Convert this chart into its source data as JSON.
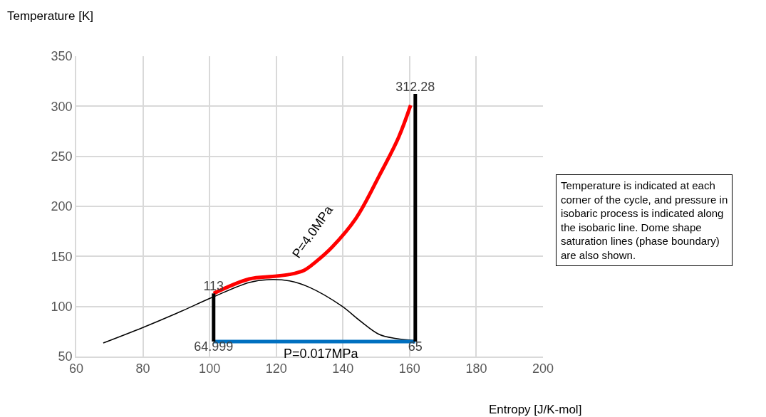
{
  "chart_data": {
    "type": "line",
    "xlabel": "Entropy [J/K-mol]",
    "ylabel": "Temperature [K]",
    "xlim": [
      60,
      200
    ],
    "xticks": [
      60,
      80,
      100,
      120,
      140,
      160,
      180,
      200
    ],
    "ylim": [
      50,
      350
    ],
    "yticks": [
      50,
      100,
      150,
      200,
      250,
      300,
      350
    ],
    "grid": true,
    "marker": "none",
    "line_style": "solid",
    "series": [
      {
        "color": "#000000",
        "x": [
          68.1,
          80,
          90,
          101.2,
          111.9,
          117.6,
          124,
          130,
          139.6,
          145,
          150.9,
          156,
          161.6
        ],
        "values": [
          63.5,
          79,
          93,
          109.7,
          124,
          126.8,
          125.5,
          119,
          100.5,
          86,
          72,
          68,
          66
        ]
      },
      {
        "color": "#ff0000",
        "x": [
          101.2,
          111.9,
          118.9,
          124,
          128.3,
          132,
          136.8,
          143.9,
          150.9,
          156.7,
          160.3
        ],
        "values": [
          113,
          127.5,
          130,
          132,
          136,
          145,
          159.5,
          188,
          230.7,
          269,
          301
        ]
      },
      {
        "color": "#0070c0",
        "x": [
          101.2,
          161.7
        ],
        "values": [
          65,
          65
        ]
      },
      {
        "color": "#000000",
        "x": [
          101.2,
          101.2
        ],
        "values": [
          64.999,
          113
        ],
        "value_labels": [
          "64.999",
          "113"
        ]
      },
      {
        "color": "#000000",
        "x": [
          161.7,
          161.7
        ],
        "values": [
          65,
          312.28
        ],
        "value_labels": [
          "65",
          "312.28"
        ]
      }
    ],
    "annotations": [
      "P=4.0MPa",
      "P=0.017MPa",
      "Temperature is indicated at each corner of the cycle, and pressure in isobaric process is indicated along the isobaric line. Dome shape saturation lines (phase boundary) are also shown."
    ]
  }
}
